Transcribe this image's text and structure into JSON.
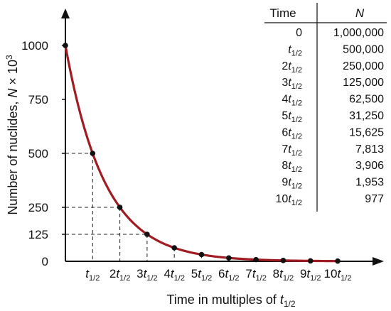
{
  "chart_data": {
    "type": "line",
    "title": "",
    "xlabel": {
      "text": "Time in multiples of ",
      "var": "t",
      "sub": "1/2"
    },
    "ylabel": {
      "text": "Number of nuclides, ",
      "var": "N",
      "mult": " × 10",
      "exp": "3"
    },
    "ylim": [
      0,
      1000
    ],
    "xlim": [
      0,
      10
    ],
    "y_ticks": [
      "0",
      "125",
      "250",
      "500",
      "750",
      "1000"
    ],
    "x_ticks": [
      {
        "pre": "",
        "var": "t",
        "sub": "1/2"
      },
      {
        "pre": "2",
        "var": "t",
        "sub": "1/2"
      },
      {
        "pre": "3",
        "var": "t",
        "sub": "1/2"
      },
      {
        "pre": "4",
        "var": "t",
        "sub": "1/2"
      },
      {
        "pre": "5",
        "var": "t",
        "sub": "1/2"
      },
      {
        "pre": "6",
        "var": "t",
        "sub": "1/2"
      },
      {
        "pre": "7",
        "var": "t",
        "sub": "1/2"
      },
      {
        "pre": "8",
        "var": "t",
        "sub": "1/2"
      },
      {
        "pre": "9",
        "var": "t",
        "sub": "1/2"
      },
      {
        "pre": "10",
        "var": "t",
        "sub": "1/2"
      }
    ],
    "series": [
      {
        "x": [
          0,
          1,
          2,
          3,
          4,
          5,
          6,
          7,
          8,
          9,
          10
        ],
        "values": [
          1000,
          500,
          250,
          125,
          62.5,
          31.25,
          15.625,
          7.813,
          3.906,
          1.953,
          0.977
        ]
      }
    ],
    "dashed_guides_at_x": [
      1,
      2,
      3,
      4,
      5,
      6,
      7,
      8,
      9,
      10
    ],
    "colors": {
      "curve": "#a01c22",
      "points": "#111111",
      "axes": "#111111"
    },
    "table": {
      "headers": [
        "Time",
        "N"
      ],
      "rows": [
        {
          "time": {
            "pre": "0",
            "var": "",
            "sub": ""
          },
          "n": "1,000,000"
        },
        {
          "time": {
            "pre": "",
            "var": "t",
            "sub": "1/2"
          },
          "n": "500,000"
        },
        {
          "time": {
            "pre": "2",
            "var": "t",
            "sub": "1/2"
          },
          "n": "250,000"
        },
        {
          "time": {
            "pre": "3",
            "var": "t",
            "sub": "1/2"
          },
          "n": "125,000"
        },
        {
          "time": {
            "pre": "4",
            "var": "t",
            "sub": "1/2"
          },
          "n": "62,500"
        },
        {
          "time": {
            "pre": "5",
            "var": "t",
            "sub": "1/2"
          },
          "n": "31,250"
        },
        {
          "time": {
            "pre": "6",
            "var": "t",
            "sub": "1/2"
          },
          "n": "15,625"
        },
        {
          "time": {
            "pre": "7",
            "var": "t",
            "sub": "1/2"
          },
          "n": "7,813"
        },
        {
          "time": {
            "pre": "8",
            "var": "t",
            "sub": "1/2"
          },
          "n": "3,906"
        },
        {
          "time": {
            "pre": "9",
            "var": "t",
            "sub": "1/2"
          },
          "n": "1,953"
        },
        {
          "time": {
            "pre": "10",
            "var": "t",
            "sub": "1/2"
          },
          "n": "977"
        }
      ]
    }
  }
}
